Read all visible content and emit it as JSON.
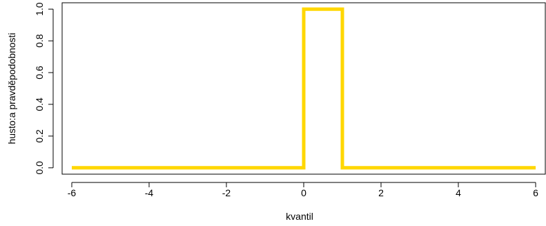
{
  "chart_data": {
    "type": "line",
    "title": "",
    "xlabel": "kvantil",
    "ylabel": "husto:a pravděpodobnosti",
    "xlim": [
      -6.25,
      6.25
    ],
    "ylim": [
      -0.04,
      1.04
    ],
    "x_ticks": [
      -6,
      -4,
      -2,
      0,
      2,
      4,
      6
    ],
    "x_tick_labels": [
      "-6",
      "-4",
      "-2",
      "0",
      "2",
      "4",
      "6"
    ],
    "y_ticks": [
      0.0,
      0.2,
      0.4,
      0.6,
      0.8,
      1.0
    ],
    "y_tick_labels": [
      "0.0",
      "0.2",
      "0.4",
      "0.6",
      "0.8",
      "1.0"
    ],
    "grid": false,
    "line_color": "#FFD700",
    "series": [
      {
        "x": [
          -6,
          0,
          0,
          1,
          1,
          6
        ],
        "y": [
          0,
          0,
          1,
          1,
          0,
          0
        ]
      }
    ]
  }
}
